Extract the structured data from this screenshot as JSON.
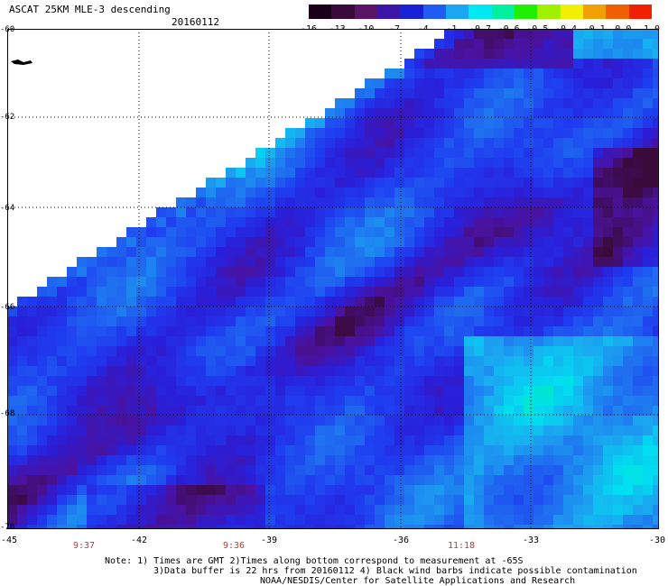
{
  "title": "ASCAT 25KM MLE-3 descending",
  "date": "20160112",
  "colorbar": {
    "labels": [
      "-16",
      "-13",
      "-10",
      "-7",
      "-4",
      "-1",
      "-0.7",
      "-0.6",
      "-0.5",
      "-0.4",
      "-0.1",
      "0.0",
      "1.0"
    ],
    "colors": [
      "#1a0018",
      "#3a0a3a",
      "#5a1566",
      "#3b16a8",
      "#1a22d8",
      "#1f5cf0",
      "#1aa6f0",
      "#00e8f0",
      "#00f0a0",
      "#20f000",
      "#a0f000",
      "#f0f000",
      "#f0a000",
      "#f06000",
      "#f02000"
    ]
  },
  "map": {
    "lat_labels": [
      "-60",
      "-62",
      "-64",
      "-66",
      "-68",
      "-70"
    ],
    "lon_labels": [
      "-45",
      "-42",
      "-39",
      "-36",
      "-33",
      "-30"
    ],
    "time_labels": [
      "9:37",
      "9:36",
      "11:18"
    ]
  },
  "notes": [
    "Note: 1) Times are GMT 2)Times along bottom correspond to measurement at -65S",
    "3)Data buffer is 22 hrs from 20160112 4) Black wind barbs indicate possible contamination",
    "NOAA/NESDIS/Center for Satellite Applications and Research"
  ]
}
